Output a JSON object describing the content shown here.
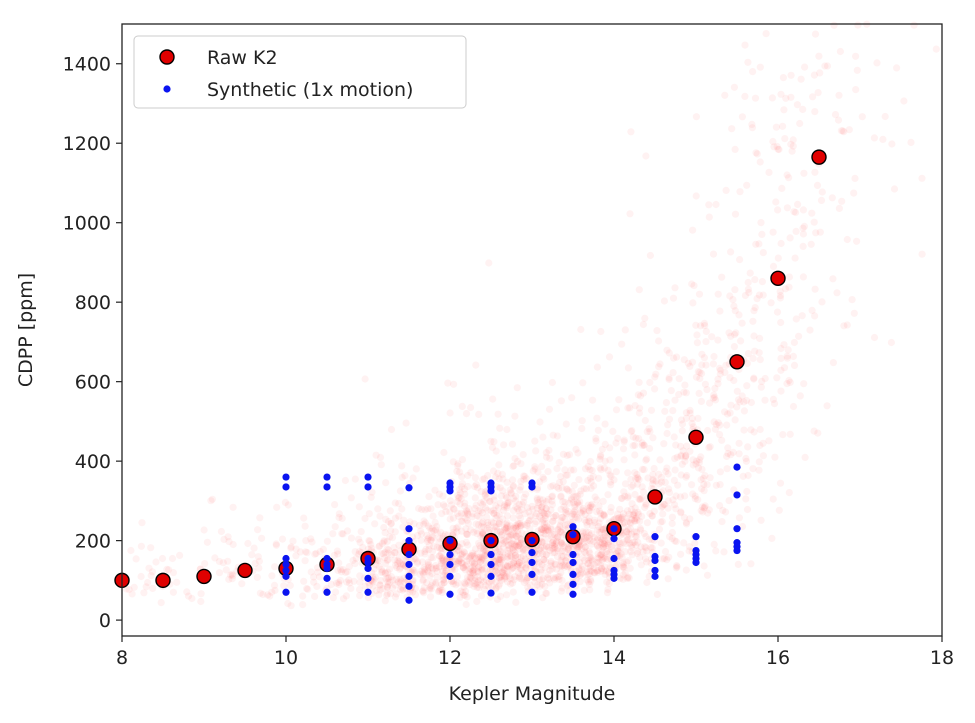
{
  "chart_data": {
    "type": "scatter",
    "title": "",
    "xlabel": "Kepler Magnitude",
    "ylabel": "CDPP [ppm]",
    "xlim": [
      8,
      18
    ],
    "ylim": [
      -40,
      1500
    ],
    "xticks": [
      8,
      10,
      12,
      14,
      16,
      18
    ],
    "yticks": [
      0,
      200,
      400,
      600,
      800,
      1000,
      1200,
      1400
    ],
    "grid": false,
    "legend_position": "upper-left",
    "colors": {
      "raw_k2": "#e00000",
      "synthetic": "#0a14f0",
      "background_cloud": "#ff4d4d"
    },
    "series": [
      {
        "name": "Raw K2",
        "marker": "large red circle with black edge",
        "x": [
          8,
          8.5,
          9,
          9.5,
          10,
          10.5,
          11,
          11.5,
          12,
          12.5,
          13,
          13.5,
          14,
          14.5,
          15,
          15.5,
          16,
          16.5
        ],
        "y": [
          100,
          100,
          110,
          125,
          130,
          140,
          155,
          178,
          193,
          200,
          203,
          210,
          230,
          310,
          460,
          650,
          860,
          1165
        ]
      },
      {
        "name": "Synthetic (1x motion)",
        "marker": "small blue dot",
        "points": [
          [
            10,
            360
          ],
          [
            10,
            335
          ],
          [
            10,
            155
          ],
          [
            10,
            140
          ],
          [
            10,
            125
          ],
          [
            10,
            110
          ],
          [
            10,
            70
          ],
          [
            10.5,
            360
          ],
          [
            10.5,
            335
          ],
          [
            10.5,
            155
          ],
          [
            10.5,
            140
          ],
          [
            10.5,
            130
          ],
          [
            10.5,
            105
          ],
          [
            10.5,
            70
          ],
          [
            11,
            360
          ],
          [
            11,
            335
          ],
          [
            11,
            155
          ],
          [
            11,
            145
          ],
          [
            11,
            130
          ],
          [
            11,
            105
          ],
          [
            11,
            70
          ],
          [
            11.5,
            333
          ],
          [
            11.5,
            230
          ],
          [
            11.5,
            200
          ],
          [
            11.5,
            165
          ],
          [
            11.5,
            140
          ],
          [
            11.5,
            110
          ],
          [
            11.5,
            85
          ],
          [
            11.5,
            50
          ],
          [
            12,
            345
          ],
          [
            12,
            335
          ],
          [
            12,
            325
          ],
          [
            12,
            200
          ],
          [
            12,
            165
          ],
          [
            12,
            140
          ],
          [
            12,
            110
          ],
          [
            12,
            65
          ],
          [
            12.5,
            345
          ],
          [
            12.5,
            335
          ],
          [
            12.5,
            325
          ],
          [
            12.5,
            200
          ],
          [
            12.5,
            165
          ],
          [
            12.5,
            140
          ],
          [
            12.5,
            110
          ],
          [
            12.5,
            68
          ],
          [
            13,
            345
          ],
          [
            13,
            335
          ],
          [
            13,
            200
          ],
          [
            13,
            170
          ],
          [
            13,
            145
          ],
          [
            13,
            115
          ],
          [
            13,
            70
          ],
          [
            13.5,
            235
          ],
          [
            13.5,
            215
          ],
          [
            13.5,
            165
          ],
          [
            13.5,
            145
          ],
          [
            13.5,
            115
          ],
          [
            13.5,
            90
          ],
          [
            13.5,
            65
          ],
          [
            14,
            230
          ],
          [
            14,
            205
          ],
          [
            14,
            155
          ],
          [
            14,
            125
          ],
          [
            14,
            115
          ],
          [
            14,
            105
          ],
          [
            14.5,
            210
          ],
          [
            14.5,
            160
          ],
          [
            14.5,
            150
          ],
          [
            14.5,
            125
          ],
          [
            14.5,
            110
          ],
          [
            15,
            210
          ],
          [
            15,
            175
          ],
          [
            15,
            165
          ],
          [
            15,
            155
          ],
          [
            15,
            145
          ],
          [
            15.5,
            385
          ],
          [
            15.5,
            315
          ],
          [
            15.5,
            230
          ],
          [
            15.5,
            195
          ],
          [
            15.5,
            185
          ],
          [
            15.5,
            175
          ]
        ]
      }
    ]
  }
}
